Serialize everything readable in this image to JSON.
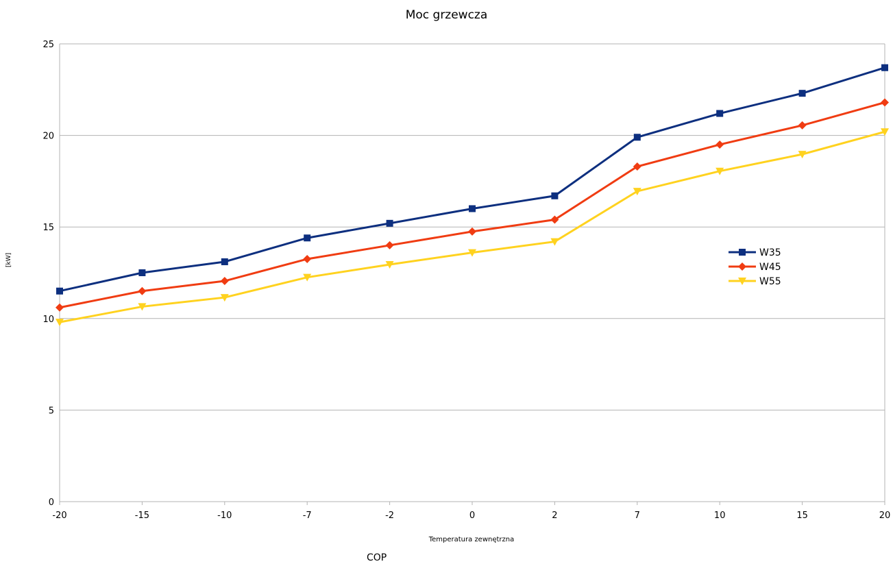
{
  "chart_data": {
    "type": "line",
    "title": "Moc grzewcza",
    "xlabel": "Temperatura zewnętrzna",
    "ylabel": "[kW]",
    "categories": [
      "-20",
      "-15",
      "-10",
      "-7",
      "-2",
      "0",
      "2",
      "7",
      "10",
      "15",
      "20"
    ],
    "ylim": [
      0,
      25
    ],
    "yticks": [
      0,
      5,
      10,
      15,
      20,
      25
    ],
    "grid": true,
    "legend_position": "right",
    "series": [
      {
        "name": "W35",
        "color": "#0d2f7f",
        "marker": "square",
        "values": [
          11.5,
          12.5,
          13.1,
          14.4,
          15.2,
          16.0,
          16.7,
          19.9,
          21.2,
          22.3,
          23.7
        ]
      },
      {
        "name": "W45",
        "color": "#f03c12",
        "marker": "diamond",
        "values": [
          10.6,
          11.5,
          12.05,
          13.25,
          14.0,
          14.75,
          15.4,
          18.3,
          19.5,
          20.55,
          21.8
        ]
      },
      {
        "name": "W55",
        "color": "#ffd21f",
        "marker": "triangle-down",
        "values": [
          9.8,
          10.65,
          11.15,
          12.25,
          12.95,
          13.6,
          14.2,
          16.95,
          18.05,
          18.97,
          20.2
        ]
      }
    ]
  },
  "footer_text": "COP"
}
